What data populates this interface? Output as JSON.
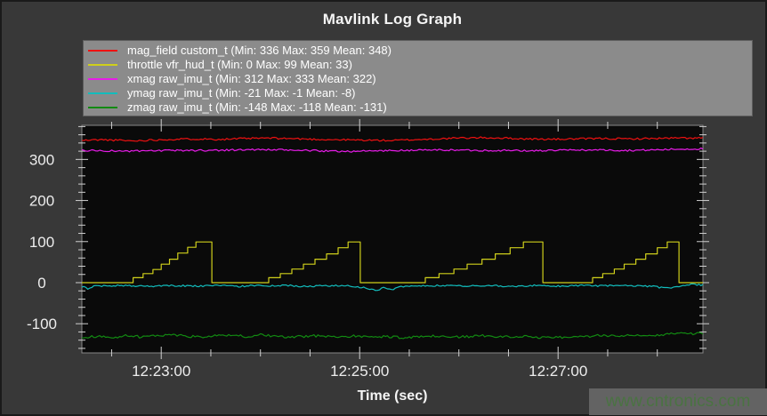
{
  "title": "Mavlink Log Graph",
  "watermark": {
    "text": "www.cntronics.com"
  },
  "axes": {
    "xlabel": "Time (sec)"
  },
  "legend": {
    "entries": [
      {
        "label": "mag_field custom_t (Min: 336 Max: 359 Mean: 348)",
        "color": "#ee1111"
      },
      {
        "label": "throttle vfr_hud_t (Min: 0 Max: 99 Mean: 33)",
        "color": "#cfcf1b"
      },
      {
        "label": "xmag raw_imu_t (Min: 312 Max: 333 Mean: 322)",
        "color": "#e81ce8"
      },
      {
        "label": "ymag raw_imu_t (Min: -21 Max: -1 Mean: -8)",
        "color": "#12bdbd"
      },
      {
        "label": "zmag raw_imu_t (Min: -148 Max: -118 Mean: -131)",
        "color": "#128a12"
      }
    ]
  },
  "chart_data": {
    "type": "line",
    "title": "Mavlink Log Graph",
    "xlabel": "Time (sec)",
    "ylabel": "",
    "x_unit": "seconds after 12:22:12",
    "xlim": [
      0,
      375.6
    ],
    "ylim": [
      -171,
      383
    ],
    "grid": false,
    "legend_position": "top",
    "plot_background": "#0a0a0a",
    "x_major_ticks": [
      {
        "t": 48,
        "label": "12:23:00"
      },
      {
        "t": 168,
        "label": "12:25:00"
      },
      {
        "t": 288,
        "label": "12:27:00"
      }
    ],
    "x_minor_tick_start": 18,
    "x_minor_tick_interval": 30,
    "y_major_ticks": [
      {
        "v": -100,
        "label": "-100"
      },
      {
        "v": 0,
        "label": "0"
      },
      {
        "v": 100,
        "label": "100"
      },
      {
        "v": 200,
        "label": "200"
      },
      {
        "v": 300,
        "label": "300"
      }
    ],
    "y_minor_tick_interval": 20,
    "series": [
      {
        "name": "mag_field custom_t",
        "color": "#ee1111",
        "render": "noisy",
        "stats": {
          "min": 336,
          "max": 359,
          "mean": 348
        },
        "noise_amp": 2.2,
        "seed": 11,
        "points": [
          [
            0,
            346
          ],
          [
            10,
            348
          ],
          [
            20,
            347
          ],
          [
            31,
            345
          ],
          [
            40,
            347
          ],
          [
            55,
            349
          ],
          [
            70,
            350
          ],
          [
            85,
            349
          ],
          [
            100,
            351
          ],
          [
            112,
            352
          ],
          [
            125,
            351
          ],
          [
            140,
            349
          ],
          [
            155,
            348
          ],
          [
            170,
            347
          ],
          [
            187,
            346
          ],
          [
            200,
            348
          ],
          [
            215,
            350
          ],
          [
            228,
            352
          ],
          [
            241,
            353
          ],
          [
            255,
            352
          ],
          [
            268,
            350
          ],
          [
            284,
            349
          ],
          [
            300,
            350
          ],
          [
            315,
            351
          ],
          [
            330,
            350
          ],
          [
            345,
            351
          ],
          [
            360,
            352
          ],
          [
            375.6,
            352
          ]
        ]
      },
      {
        "name": "throttle vfr_hud_t",
        "color": "#cfcf1b",
        "render": "step",
        "stats": {
          "min": 0,
          "max": 99,
          "mean": 33
        },
        "points": [
          [
            0,
            0
          ],
          [
            31,
            12
          ],
          [
            37,
            22
          ],
          [
            43,
            32
          ],
          [
            48,
            45
          ],
          [
            53,
            57
          ],
          [
            58,
            72
          ],
          [
            64,
            86
          ],
          [
            69,
            99
          ],
          [
            78.6,
            0
          ],
          [
            113,
            12
          ],
          [
            120,
            22
          ],
          [
            127,
            33
          ],
          [
            134,
            45
          ],
          [
            141,
            57
          ],
          [
            148,
            70
          ],
          [
            155,
            85
          ],
          [
            161,
            99
          ],
          [
            168.4,
            0
          ],
          [
            207.7,
            12
          ],
          [
            216,
            22
          ],
          [
            225,
            33
          ],
          [
            233,
            45
          ],
          [
            242,
            57
          ],
          [
            250,
            70
          ],
          [
            259,
            85
          ],
          [
            267,
            99
          ],
          [
            278.8,
            0
          ],
          [
            308.9,
            12
          ],
          [
            315,
            22
          ],
          [
            322,
            33
          ],
          [
            328,
            45
          ],
          [
            335,
            57
          ],
          [
            341,
            70
          ],
          [
            348,
            85
          ],
          [
            354,
            99
          ],
          [
            361.1,
            0
          ]
        ]
      },
      {
        "name": "xmag raw_imu_t",
        "color": "#e81ce8",
        "render": "noisy",
        "stats": {
          "min": 312,
          "max": 333,
          "mean": 322
        },
        "noise_amp": 2.2,
        "seed": 23,
        "points": [
          [
            0,
            322
          ],
          [
            15,
            321
          ],
          [
            31,
            320
          ],
          [
            45,
            321
          ],
          [
            60,
            322
          ],
          [
            75,
            322
          ],
          [
            90,
            323
          ],
          [
            105,
            324
          ],
          [
            120,
            323
          ],
          [
            135,
            322
          ],
          [
            150,
            320
          ],
          [
            165,
            320
          ],
          [
            180,
            321
          ],
          [
            195,
            322
          ],
          [
            210,
            323
          ],
          [
            225,
            323
          ],
          [
            240,
            322
          ],
          [
            255,
            322
          ],
          [
            270,
            321
          ],
          [
            285,
            322
          ],
          [
            300,
            323
          ],
          [
            315,
            323
          ],
          [
            330,
            322
          ],
          [
            345,
            323
          ],
          [
            360,
            325
          ],
          [
            375.6,
            326
          ]
        ]
      },
      {
        "name": "ymag raw_imu_t",
        "color": "#12bdbd",
        "render": "noisy",
        "stats": {
          "min": -21,
          "max": -1,
          "mean": -8
        },
        "noise_amp": 2.0,
        "seed": 37,
        "points": [
          [
            0,
            -9
          ],
          [
            4,
            -16
          ],
          [
            8,
            -7
          ],
          [
            15,
            -8
          ],
          [
            25,
            -7
          ],
          [
            35,
            -8
          ],
          [
            45,
            -9
          ],
          [
            55,
            -7
          ],
          [
            65,
            -8
          ],
          [
            75,
            -8
          ],
          [
            85,
            -7
          ],
          [
            95,
            -9
          ],
          [
            105,
            -7
          ],
          [
            115,
            -8
          ],
          [
            125,
            -7
          ],
          [
            135,
            -9
          ],
          [
            145,
            -8
          ],
          [
            155,
            -7
          ],
          [
            165,
            -9
          ],
          [
            172,
            -13
          ],
          [
            178,
            -19
          ],
          [
            183,
            -12
          ],
          [
            188,
            -17
          ],
          [
            193,
            -9
          ],
          [
            200,
            -7
          ],
          [
            210,
            -8
          ],
          [
            220,
            -7
          ],
          [
            230,
            -8
          ],
          [
            240,
            -8
          ],
          [
            250,
            -7
          ],
          [
            258,
            -10
          ],
          [
            265,
            -8
          ],
          [
            275,
            -7
          ],
          [
            285,
            -9
          ],
          [
            295,
            -8
          ],
          [
            305,
            -7
          ],
          [
            315,
            -8
          ],
          [
            325,
            -7
          ],
          [
            335,
            -8
          ],
          [
            345,
            -9
          ],
          [
            352,
            -13
          ],
          [
            358,
            -11
          ],
          [
            364,
            -7
          ],
          [
            370,
            -4
          ],
          [
            375.6,
            -6
          ]
        ]
      },
      {
        "name": "zmag raw_imu_t",
        "color": "#128a12",
        "render": "noisy",
        "stats": {
          "min": -148,
          "max": -118,
          "mean": -131
        },
        "noise_amp": 3.0,
        "seed": 51,
        "points": [
          [
            0,
            -133
          ],
          [
            10,
            -131
          ],
          [
            20,
            -133
          ],
          [
            28,
            -128
          ],
          [
            35,
            -132
          ],
          [
            45,
            -130
          ],
          [
            52,
            -126
          ],
          [
            60,
            -129
          ],
          [
            70,
            -132
          ],
          [
            80,
            -130
          ],
          [
            90,
            -128
          ],
          [
            100,
            -131
          ],
          [
            108,
            -127
          ],
          [
            115,
            -130
          ],
          [
            125,
            -133
          ],
          [
            135,
            -131
          ],
          [
            145,
            -129
          ],
          [
            155,
            -132
          ],
          [
            165,
            -130
          ],
          [
            175,
            -133
          ],
          [
            185,
            -131
          ],
          [
            195,
            -134
          ],
          [
            205,
            -132
          ],
          [
            215,
            -130
          ],
          [
            225,
            -133
          ],
          [
            235,
            -131
          ],
          [
            245,
            -129
          ],
          [
            255,
            -132
          ],
          [
            265,
            -130
          ],
          [
            275,
            -133
          ],
          [
            285,
            -132
          ],
          [
            295,
            -134
          ],
          [
            305,
            -131
          ],
          [
            315,
            -128
          ],
          [
            325,
            -130
          ],
          [
            335,
            -126
          ],
          [
            345,
            -129
          ],
          [
            355,
            -125
          ],
          [
            362,
            -122
          ],
          [
            368,
            -124
          ],
          [
            375.6,
            -123
          ]
        ]
      }
    ]
  }
}
